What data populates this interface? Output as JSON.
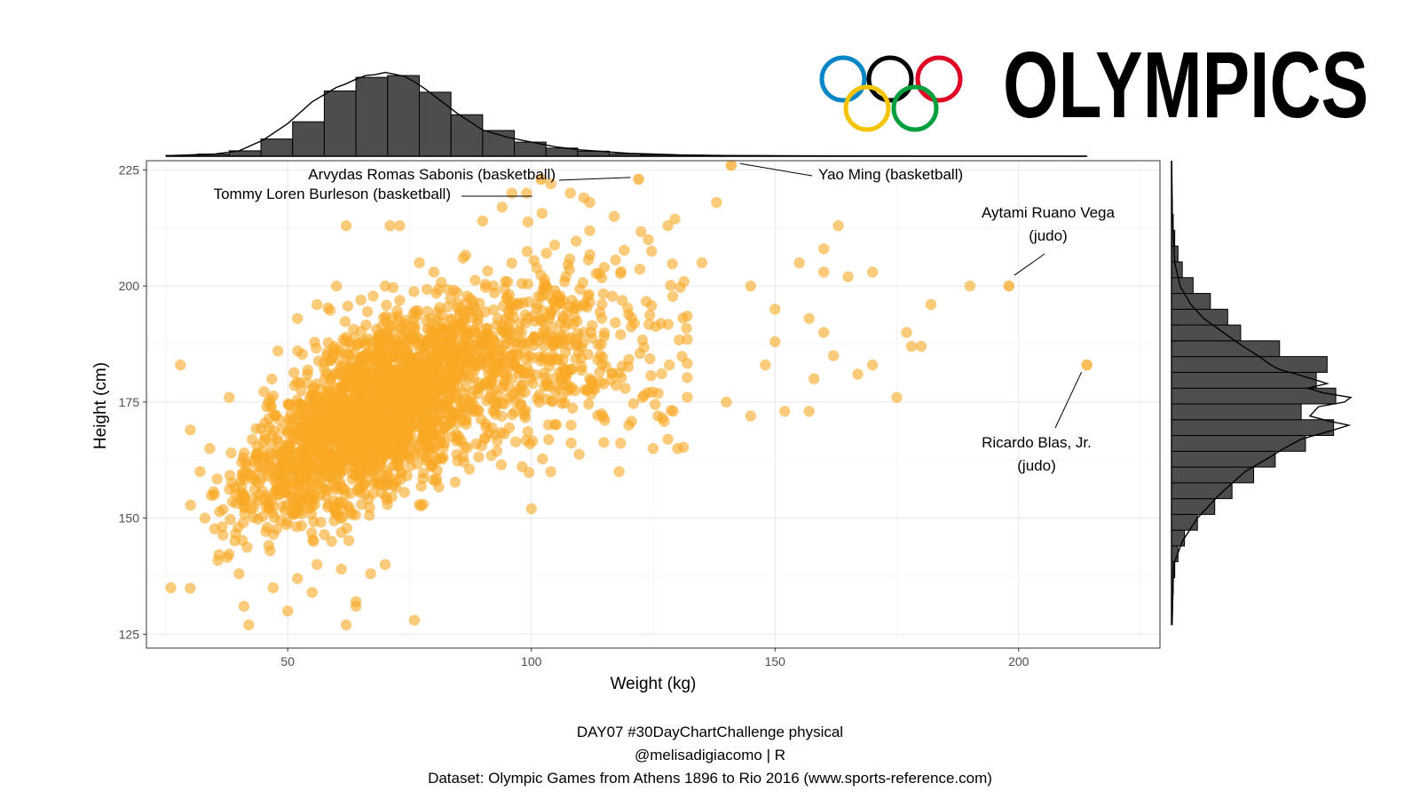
{
  "logo": {
    "text": "OLYMPICS",
    "ring_colors": [
      "#0085C7",
      "#000000",
      "#DF0024",
      "#F4C300",
      "#009F3D"
    ]
  },
  "caption": {
    "line1": "DAY07 #30DayChartChallenge physical",
    "line2": "@melisadigiacomo | R",
    "line3": "Dataset: Olympic Games from Athens 1896 to Rio 2016 (www.sports-reference.com)"
  },
  "colors": {
    "point": "#F9A825",
    "bar": "#4d4d4d",
    "grid": "#ebebeb",
    "panel_border": "#333333"
  },
  "chart_data": {
    "type": "scatter",
    "xlabel": "Weight (kg)",
    "ylabel": "Height (cm)",
    "xlim": [
      21,
      229
    ],
    "ylim": [
      122,
      227
    ],
    "xticks": [
      50,
      100,
      150,
      200
    ],
    "yticks": [
      125,
      150,
      175,
      200,
      225
    ],
    "grid": true,
    "point_color": "#F9A825",
    "bulk_trend": {
      "weight": [
        30,
        40,
        50,
        60,
        70,
        80,
        90,
        100,
        110,
        120,
        130
      ],
      "height_mean": [
        145,
        155,
        163,
        170,
        175,
        179,
        183,
        186,
        188,
        189,
        190
      ]
    },
    "labeled_points": [
      {
        "label": "Arvydas Romas Sabonis (basketball)",
        "weight": 122,
        "height": 223
      },
      {
        "label": "Tommy Loren Burleson (basketball)",
        "weight": 102,
        "height": 223
      },
      {
        "label": "Yao Ming (basketball)",
        "weight": 141,
        "height": 226
      },
      {
        "label": "Aytami Ruano Vega",
        "label2": "(judo)",
        "weight": 198,
        "height": 200
      },
      {
        "label": "Ricardo Blas, Jr.",
        "label2": "(judo)",
        "weight": 214,
        "height": 183
      }
    ],
    "outliers": [
      [
        26,
        135
      ],
      [
        28,
        183
      ],
      [
        30,
        169
      ],
      [
        32,
        160
      ],
      [
        42,
        127
      ],
      [
        41,
        131
      ],
      [
        55,
        134
      ],
      [
        62,
        213
      ],
      [
        71,
        213
      ],
      [
        73,
        213
      ],
      [
        76,
        128
      ],
      [
        62,
        127
      ],
      [
        64,
        131
      ],
      [
        67,
        138
      ],
      [
        70,
        140
      ],
      [
        56,
        140
      ],
      [
        59,
        145
      ],
      [
        100,
        152
      ],
      [
        104,
        160
      ],
      [
        118,
        160
      ],
      [
        120,
        170
      ],
      [
        125,
        165
      ],
      [
        126,
        172
      ],
      [
        128,
        167
      ],
      [
        130,
        165
      ],
      [
        140,
        175
      ],
      [
        145,
        172
      ],
      [
        152,
        173
      ],
      [
        157,
        173
      ],
      [
        158,
        180
      ],
      [
        160,
        190
      ],
      [
        162,
        185
      ],
      [
        163,
        213
      ],
      [
        165,
        202
      ],
      [
        167,
        181
      ],
      [
        170,
        183
      ],
      [
        170,
        203
      ],
      [
        175,
        176
      ],
      [
        177,
        190
      ],
      [
        178,
        187
      ],
      [
        180,
        187
      ],
      [
        182,
        196
      ],
      [
        190,
        200
      ],
      [
        145,
        200
      ],
      [
        150,
        195
      ],
      [
        155,
        205
      ],
      [
        160,
        203
      ],
      [
        160,
        208
      ],
      [
        157,
        193
      ],
      [
        150,
        188
      ],
      [
        148,
        183
      ],
      [
        135,
        205
      ],
      [
        138,
        218
      ],
      [
        128,
        213
      ],
      [
        124,
        210
      ],
      [
        117,
        215
      ],
      [
        112,
        218
      ],
      [
        108,
        220
      ],
      [
        96,
        220
      ],
      [
        94,
        217
      ],
      [
        104,
        222
      ],
      [
        99,
        220
      ],
      [
        90,
        214
      ],
      [
        86,
        206
      ],
      [
        80,
        203
      ],
      [
        77,
        205
      ],
      [
        70,
        200
      ],
      [
        65,
        197
      ],
      [
        60,
        200
      ],
      [
        56,
        196
      ],
      [
        52,
        193
      ],
      [
        48,
        186
      ],
      [
        46,
        175
      ],
      [
        38,
        176
      ],
      [
        34,
        165
      ],
      [
        33,
        150
      ],
      [
        40,
        138
      ],
      [
        47,
        135
      ],
      [
        50,
        130
      ],
      [
        52,
        137
      ],
      [
        61,
        139
      ],
      [
        64,
        132
      ]
    ],
    "marginal_x": {
      "bin_edges": [
        25,
        31.5,
        38,
        44.5,
        51,
        57.5,
        64,
        70.5,
        77,
        83.5,
        90,
        96.5,
        103,
        109.5,
        116,
        122.5,
        129,
        135.5,
        142,
        148.5,
        155,
        161.5,
        168,
        174.5,
        181,
        187.5,
        194,
        200.5,
        207,
        213.5,
        214
      ],
      "density": [
        0.0005,
        0.0012,
        0.003,
        0.0095,
        0.019,
        0.036,
        0.0435,
        0.0445,
        0.0353,
        0.0229,
        0.0142,
        0.0078,
        0.0045,
        0.0028,
        0.0014,
        0.0009,
        0.0006,
        0.0004,
        0.0003,
        0.0002,
        0.00015,
        0.0001,
        8e-05,
        6e-05,
        5e-05,
        4e-05,
        3e-05,
        2e-05,
        2e-05,
        2e-05
      ],
      "curve_x": [
        25,
        35,
        40,
        45,
        50,
        55,
        60,
        62,
        64,
        66,
        68,
        70,
        72,
        74,
        76,
        78,
        80,
        85,
        90,
        95,
        100,
        105,
        110,
        120,
        130,
        140,
        160,
        180,
        214
      ],
      "curve_y": [
        0.0003,
        0.0012,
        0.003,
        0.009,
        0.018,
        0.03,
        0.038,
        0.04,
        0.0425,
        0.0445,
        0.045,
        0.0462,
        0.0452,
        0.044,
        0.041,
        0.0375,
        0.0335,
        0.0232,
        0.0145,
        0.0105,
        0.0078,
        0.0052,
        0.0035,
        0.0016,
        0.0008,
        0.0004,
        0.0002,
        0.0001,
        5e-05
      ]
    },
    "marginal_y": {
      "bin_edges": [
        127,
        130.4,
        133.8,
        137.2,
        140.6,
        144,
        147.4,
        150.8,
        154.2,
        157.6,
        161,
        164.4,
        167.8,
        171.2,
        174.6,
        178,
        181.4,
        184.8,
        188.2,
        191.6,
        195,
        198.4,
        201.8,
        205.2,
        208.6,
        212,
        215.4,
        218.8,
        222.2,
        225.6
      ],
      "density": [
        0.0002,
        0.0004,
        0.0008,
        0.0015,
        0.003,
        0.006,
        0.012,
        0.02,
        0.028,
        0.038,
        0.048,
        0.062,
        0.075,
        0.06,
        0.076,
        0.067,
        0.072,
        0.05,
        0.032,
        0.026,
        0.018,
        0.01,
        0.005,
        0.003,
        0.0015,
        0.0008,
        0.0004,
        0.0002,
        0.0001
      ],
      "curve_y": [
        127,
        140,
        145,
        150,
        155,
        160,
        163,
        165,
        167,
        169,
        170,
        171,
        172,
        174,
        175,
        176,
        177,
        178,
        179,
        180,
        181,
        182,
        183,
        185,
        187,
        190,
        193,
        196,
        200,
        205,
        215,
        227
      ],
      "curve_x": [
        0.0003,
        0.001,
        0.005,
        0.012,
        0.022,
        0.034,
        0.045,
        0.052,
        0.06,
        0.075,
        0.082,
        0.072,
        0.064,
        0.068,
        0.08,
        0.083,
        0.07,
        0.063,
        0.072,
        0.065,
        0.058,
        0.05,
        0.046,
        0.04,
        0.033,
        0.024,
        0.015,
        0.009,
        0.004,
        0.0015,
        0.0004,
        0.0001
      ]
    }
  }
}
